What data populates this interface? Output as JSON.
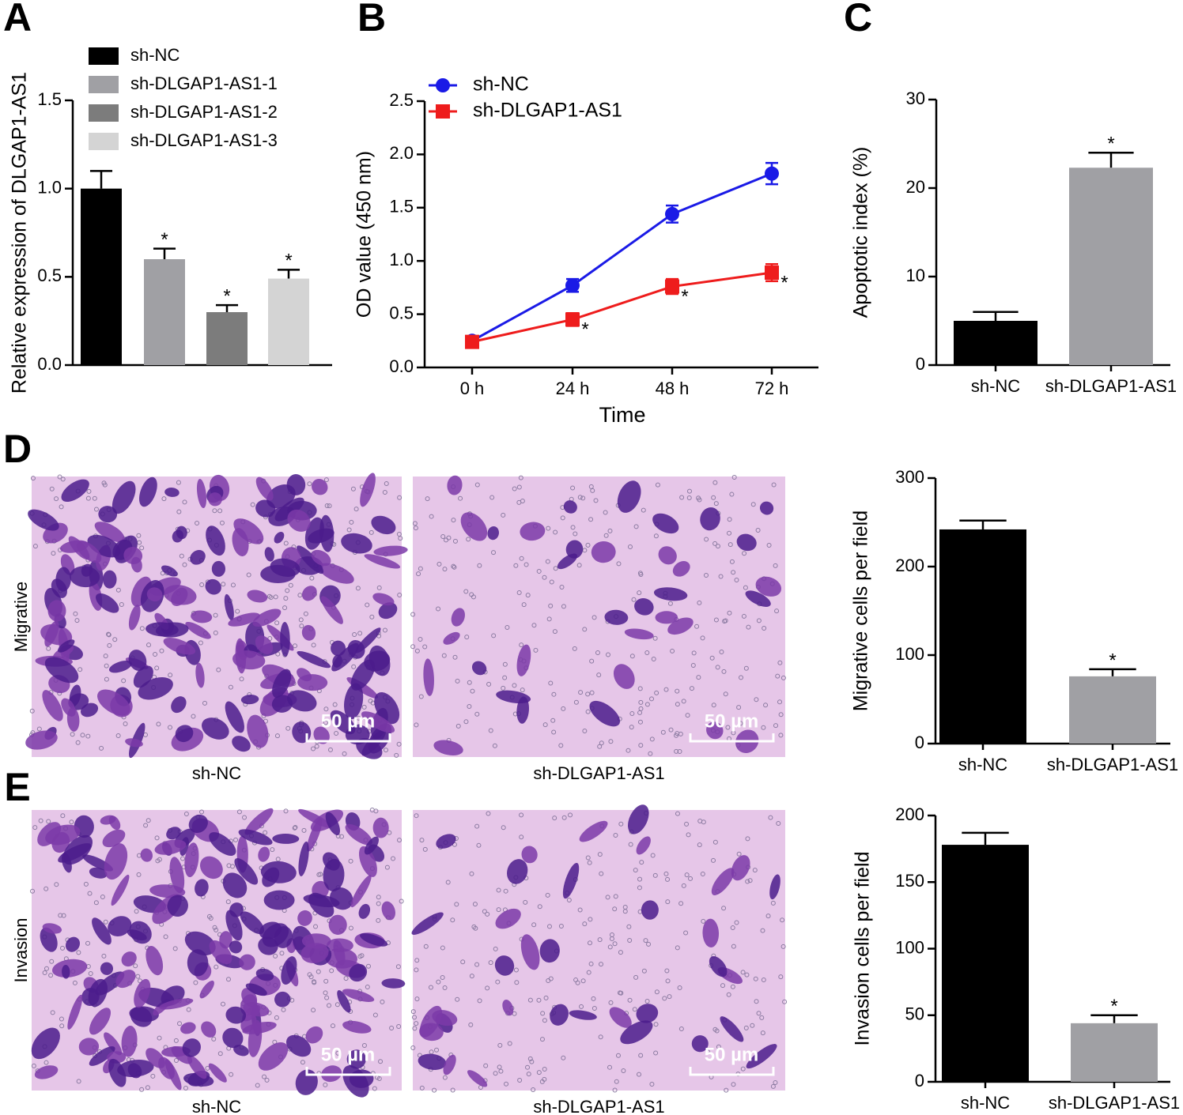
{
  "panel_letters": [
    "A",
    "B",
    "C",
    "D",
    "E"
  ],
  "chart_data": [
    {
      "type": "bar",
      "ylabel": "Relative expression of DLGAP1-AS1",
      "categories": [
        "sh-NC",
        "sh-DLGAP1-AS1-1",
        "sh-DLGAP1-AS1-2",
        "sh-DLGAP1-AS1-3"
      ],
      "colors": [
        "#000000",
        "#a0a0a4",
        "#7c7c7c",
        "#d4d4d4"
      ],
      "values": [
        1.0,
        0.6,
        0.3,
        0.49
      ],
      "errors": [
        0.1,
        0.06,
        0.04,
        0.05
      ],
      "annotations": [
        null,
        "*",
        "*",
        "*"
      ],
      "legend": true,
      "ylim": [
        0,
        1.5
      ],
      "yticks": [
        {
          "value": 0,
          "label": "0.0"
        },
        {
          "value": 0.5,
          "label": "0.5"
        },
        {
          "value": 1,
          "label": "1.0"
        },
        {
          "value": 1.5,
          "label": "1.5"
        }
      ]
    },
    {
      "type": "line",
      "xlabel": "Time",
      "ylabel": "OD value (450 nm)",
      "categories": [
        "0 h",
        "24 h",
        "48 h",
        "72 h"
      ],
      "series": [
        {
          "name": "sh-NC",
          "color": "#1a1ae6",
          "marker": "circle",
          "values": [
            0.25,
            0.77,
            1.44,
            1.82
          ],
          "errors": [
            0.03,
            0.06,
            0.08,
            0.1
          ],
          "annotations": [
            null,
            null,
            null,
            null
          ]
        },
        {
          "name": "sh-DLGAP1-AS1",
          "color": "#ee1c1c",
          "marker": "square",
          "values": [
            0.24,
            0.45,
            0.76,
            0.89
          ],
          "errors": [
            0.03,
            0.06,
            0.07,
            0.08
          ],
          "annotations": [
            null,
            "*",
            "*",
            "*"
          ]
        }
      ],
      "legend": true,
      "ylim": [
        0,
        2.5
      ],
      "yticks": [
        {
          "value": 0,
          "label": "0.0"
        },
        {
          "value": 0.5,
          "label": "0.5"
        },
        {
          "value": 1,
          "label": "1.0"
        },
        {
          "value": 1.5,
          "label": "1.5"
        },
        {
          "value": 2,
          "label": "2.0"
        },
        {
          "value": 2.5,
          "label": "2.5"
        }
      ]
    },
    {
      "type": "bar",
      "ylabel": "Apoptotic index (%)",
      "categories": [
        "sh-NC",
        "sh-DLGAP1-AS1"
      ],
      "colors": [
        "#000000",
        "#a0a0a4"
      ],
      "values": [
        5,
        22.3
      ],
      "errors": [
        1,
        1.7
      ],
      "annotations": [
        null,
        "*"
      ],
      "legend": false,
      "ylim": [
        0,
        30
      ],
      "yticks": [
        0,
        10,
        20,
        30
      ]
    },
    {
      "type": "bar",
      "ylabel": "Migrative cells per field",
      "categories": [
        "sh-NC",
        "sh-DLGAP1-AS1"
      ],
      "colors": [
        "#000000",
        "#a0a0a4"
      ],
      "values": [
        242,
        76
      ],
      "errors": [
        10,
        8
      ],
      "annotations": [
        null,
        "*"
      ],
      "legend": false,
      "ylim": [
        0,
        300
      ],
      "yticks": [
        0,
        100,
        200,
        300
      ]
    },
    {
      "type": "bar",
      "ylabel": "Invasion cells per field",
      "categories": [
        "sh-NC",
        "sh-DLGAP1-AS1"
      ],
      "colors": [
        "#000000",
        "#a0a0a4"
      ],
      "values": [
        178,
        44
      ],
      "errors": [
        9,
        6
      ],
      "annotations": [
        null,
        "*"
      ],
      "legend": false,
      "ylim": [
        0,
        200
      ],
      "yticks": [
        0,
        50,
        100,
        150,
        200
      ]
    }
  ],
  "micrographs": [
    {
      "label": "Migrative",
      "images": [
        {
          "caption": "sh-NC",
          "scale_bar": "50 µm"
        },
        {
          "caption": "sh-DLGAP1-AS1",
          "scale_bar": "50 µm"
        }
      ]
    },
    {
      "label": "Invasion",
      "images": [
        {
          "caption": "sh-NC",
          "scale_bar": "50 µm"
        },
        {
          "caption": "sh-DLGAP1-AS1",
          "scale_bar": "50 µm"
        }
      ]
    }
  ]
}
